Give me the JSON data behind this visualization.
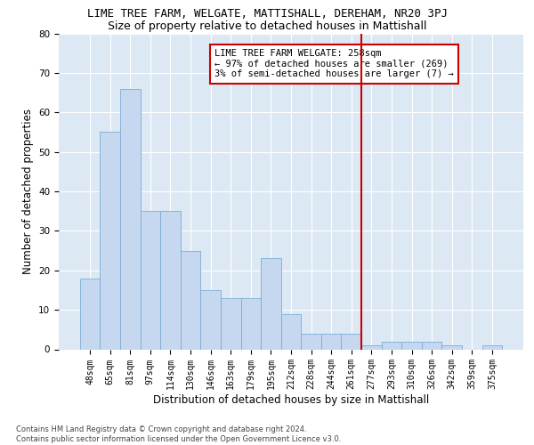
{
  "title": "LIME TREE FARM, WELGATE, MATTISHALL, DEREHAM, NR20 3PJ",
  "subtitle": "Size of property relative to detached houses in Mattishall",
  "xlabel": "Distribution of detached houses by size in Mattishall",
  "ylabel": "Number of detached properties",
  "bar_values": [
    18,
    55,
    66,
    35,
    35,
    25,
    15,
    13,
    13,
    23,
    9,
    4,
    4,
    4,
    1,
    2,
    2,
    2,
    1,
    0,
    1
  ],
  "bar_labels": [
    "48sqm",
    "65sqm",
    "81sqm",
    "97sqm",
    "114sqm",
    "130sqm",
    "146sqm",
    "163sqm",
    "179sqm",
    "195sqm",
    "212sqm",
    "228sqm",
    "244sqm",
    "261sqm",
    "277sqm",
    "293sqm",
    "310sqm",
    "326sqm",
    "342sqm",
    "359sqm",
    "375sqm"
  ],
  "bar_color": "#c5d8f0",
  "bar_edge_color": "#7aadd4",
  "vline_x_index": 13,
  "vline_color": "#cc0000",
  "annotation_box_text": "LIME TREE FARM WELGATE: 258sqm\n← 97% of detached houses are smaller (269)\n3% of semi-detached houses are larger (7) →",
  "ylim": [
    0,
    80
  ],
  "yticks": [
    0,
    10,
    20,
    30,
    40,
    50,
    60,
    70,
    80
  ],
  "bg_color": "#dde8f5",
  "footer_text": "Contains HM Land Registry data © Crown copyright and database right 2024.\nContains public sector information licensed under the Open Government Licence v3.0.",
  "title_fontsize": 9,
  "subtitle_fontsize": 9,
  "axis_label_fontsize": 8.5,
  "tick_fontsize": 7,
  "annotation_fontsize": 7.5
}
